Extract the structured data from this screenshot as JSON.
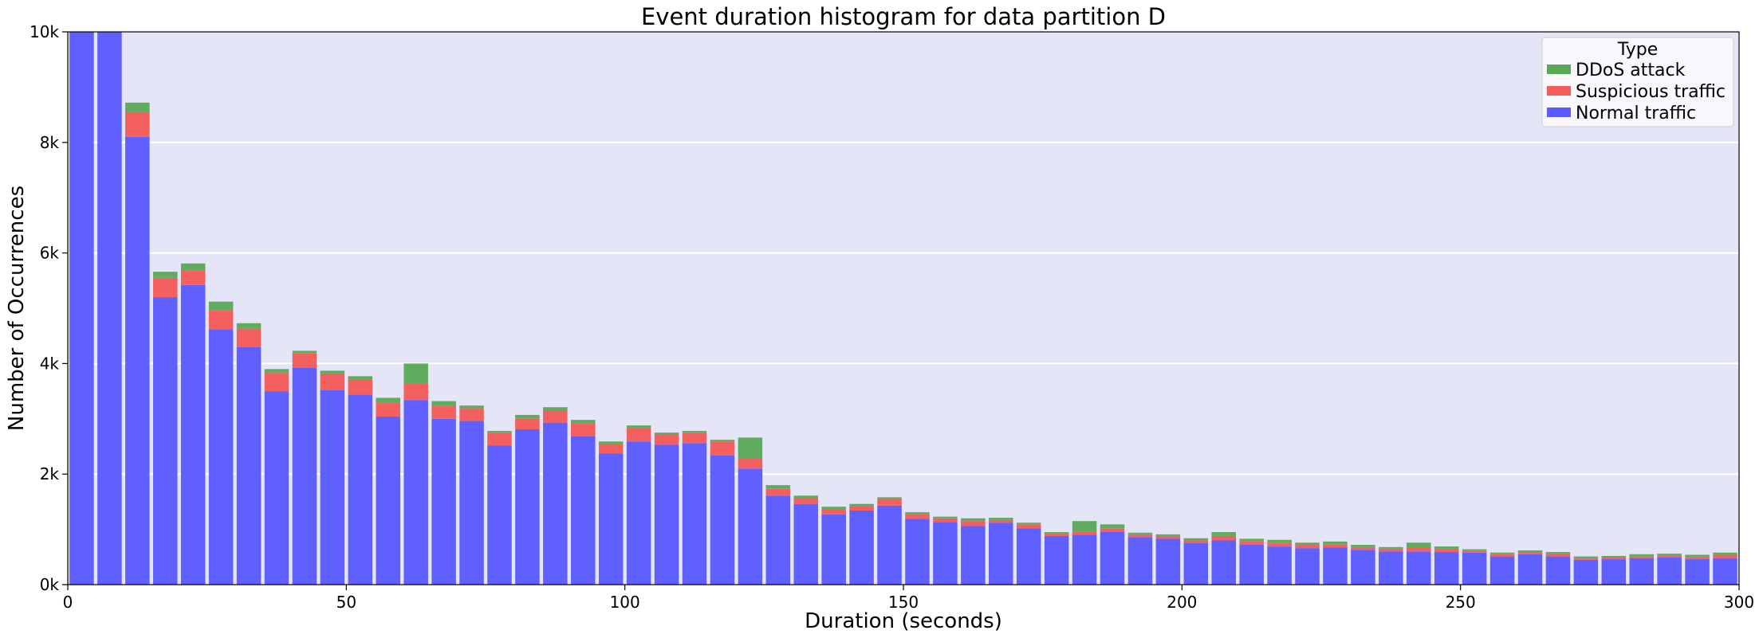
{
  "chart_data": {
    "type": "bar",
    "stacked": true,
    "title": "Event duration histogram for data partition D",
    "xlabel": "Duration (seconds)",
    "ylabel": "Number of Occurrences",
    "xlim": [
      0,
      300
    ],
    "ylim": [
      0,
      10000
    ],
    "bin_width": 5,
    "x": [
      2.5,
      7.5,
      12.5,
      17.5,
      22.5,
      27.5,
      32.5,
      37.5,
      42.5,
      47.5,
      52.5,
      57.5,
      62.5,
      67.5,
      72.5,
      77.5,
      82.5,
      87.5,
      92.5,
      97.5,
      102.5,
      107.5,
      112.5,
      117.5,
      122.5,
      127.5,
      132.5,
      137.5,
      142.5,
      147.5,
      152.5,
      157.5,
      162.5,
      167.5,
      172.5,
      177.5,
      182.5,
      187.5,
      192.5,
      197.5,
      202.5,
      207.5,
      212.5,
      217.5,
      222.5,
      227.5,
      232.5,
      237.5,
      242.5,
      247.5,
      252.5,
      257.5,
      262.5,
      267.5,
      272.5,
      277.5,
      282.5,
      287.5,
      292.5,
      297.5
    ],
    "xticks": [
      0,
      50,
      100,
      150,
      200,
      250,
      300
    ],
    "xtick_labels": [
      "0",
      "50",
      "100",
      "150",
      "200",
      "250",
      "300"
    ],
    "yticks": [
      0,
      2000,
      4000,
      6000,
      8000,
      10000
    ],
    "ytick_labels": [
      "0k",
      "2k",
      "4k",
      "6k",
      "8k",
      "10k"
    ],
    "grid": "horizontal",
    "legend": {
      "title": "Type",
      "placement": "top-right",
      "entries": [
        "DDoS attack",
        "Suspicious traffic",
        "Normal traffic"
      ]
    },
    "series": [
      {
        "name": "Normal traffic",
        "color": "#5b5bff",
        "values": [
          10000,
          10000,
          8100,
          5200,
          5420,
          4620,
          4300,
          3500,
          3920,
          3520,
          3440,
          3040,
          3340,
          3000,
          2960,
          2520,
          2810,
          2930,
          2690,
          2370,
          2590,
          2530,
          2560,
          2340,
          2100,
          1610,
          1460,
          1270,
          1340,
          1430,
          1190,
          1130,
          1060,
          1120,
          1020,
          880,
          900,
          960,
          860,
          830,
          750,
          800,
          720,
          690,
          660,
          670,
          630,
          600,
          600,
          590,
          580,
          510,
          550,
          510,
          450,
          460,
          480,
          490,
          460,
          480
        ]
      },
      {
        "name": "Suspicious traffic",
        "color": "#f45b5b",
        "values": [
          0,
          0,
          450,
          350,
          260,
          340,
          330,
          330,
          270,
          300,
          270,
          250,
          300,
          240,
          230,
          220,
          200,
          210,
          230,
          180,
          250,
          180,
          180,
          250,
          190,
          130,
          110,
          100,
          80,
          120,
          80,
          70,
          90,
          50,
          70,
          40,
          60,
          60,
          50,
          50,
          50,
          80,
          60,
          70,
          60,
          60,
          50,
          50,
          70,
          60,
          30,
          40,
          40,
          50,
          30,
          30,
          30,
          30,
          40,
          60
        ]
      },
      {
        "name": "DDoS attack",
        "color": "#5aa95a",
        "values": [
          0,
          0,
          170,
          110,
          130,
          160,
          100,
          70,
          40,
          50,
          60,
          90,
          360,
          80,
          50,
          40,
          60,
          70,
          60,
          40,
          40,
          40,
          40,
          30,
          370,
          60,
          40,
          40,
          40,
          30,
          40,
          30,
          50,
          40,
          30,
          30,
          190,
          70,
          30,
          30,
          40,
          70,
          50,
          50,
          40,
          50,
          40,
          30,
          90,
          40,
          30,
          30,
          30,
          30,
          30,
          30,
          40,
          40,
          40,
          40
        ]
      }
    ]
  }
}
